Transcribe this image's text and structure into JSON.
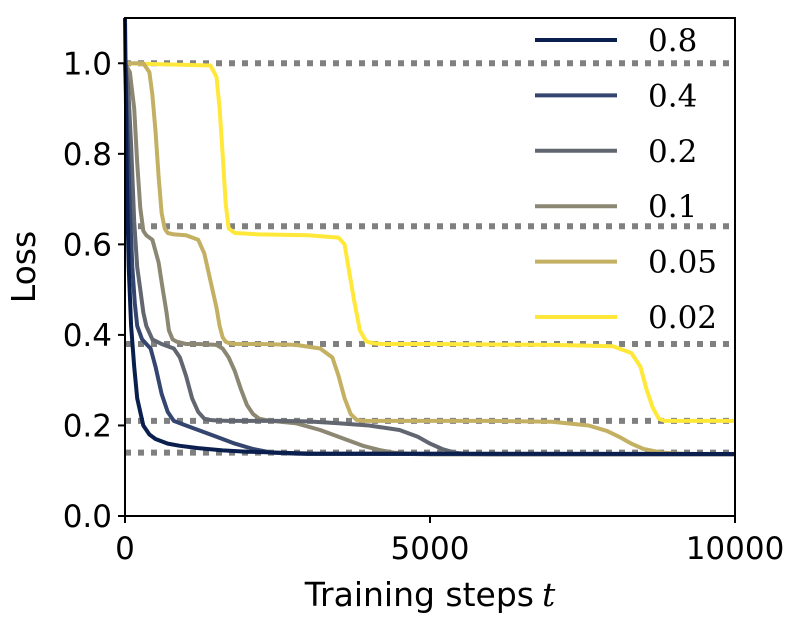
{
  "chart_data": {
    "type": "line",
    "xlabel": "Training steps",
    "xlabel_math": "t",
    "ylabel": "Loss",
    "xlim": [
      0,
      10000
    ],
    "ylim": [
      0.0,
      1.1
    ],
    "x_ticks": [
      0,
      5000,
      10000
    ],
    "x_tick_labels": [
      "0",
      "5000",
      "10000"
    ],
    "y_ticks": [
      0.0,
      0.2,
      0.4,
      0.6,
      0.8,
      1.0
    ],
    "y_tick_labels": [
      "0.0",
      "0.2",
      "0.4",
      "0.6",
      "0.8",
      "1.0"
    ],
    "reference_lines": [
      1.0,
      0.64,
      0.38,
      0.21,
      0.14
    ],
    "reference_line_color": "#808080",
    "legend_position": "upper-right",
    "series": [
      {
        "name": "0.8",
        "color": "#0a1f4d",
        "x": [
          0,
          30,
          60,
          100,
          150,
          200,
          300,
          400,
          500,
          700,
          900,
          1200,
          1600,
          2000,
          2500,
          3000,
          10000
        ],
        "y": [
          1.1,
          0.75,
          0.55,
          0.42,
          0.33,
          0.26,
          0.2,
          0.18,
          0.17,
          0.16,
          0.155,
          0.15,
          0.145,
          0.142,
          0.14,
          0.138,
          0.137
        ]
      },
      {
        "name": "0.4",
        "color": "#34466f",
        "x": [
          0,
          40,
          80,
          120,
          160,
          200,
          280,
          350,
          420,
          500,
          600,
          700,
          800,
          1000,
          1200,
          1500,
          1800,
          2100,
          2400,
          2700,
          3000,
          10000
        ],
        "y": [
          1.0,
          0.85,
          0.68,
          0.55,
          0.47,
          0.42,
          0.39,
          0.38,
          0.37,
          0.33,
          0.27,
          0.23,
          0.21,
          0.2,
          0.19,
          0.175,
          0.16,
          0.148,
          0.14,
          0.138,
          0.137,
          0.137
        ]
      },
      {
        "name": "0.2",
        "color": "#616670",
        "x": [
          0,
          50,
          100,
          150,
          200,
          250,
          300,
          350,
          450,
          600,
          700,
          800,
          900,
          1000,
          1100,
          1200,
          1300,
          1400,
          1500,
          1700,
          2000,
          2500,
          3000,
          3500,
          4000,
          4500,
          4800,
          5000,
          5200,
          5400,
          5600,
          6000,
          10000
        ],
        "y": [
          1.0,
          0.95,
          0.82,
          0.65,
          0.55,
          0.5,
          0.45,
          0.42,
          0.39,
          0.38,
          0.375,
          0.37,
          0.35,
          0.31,
          0.26,
          0.23,
          0.215,
          0.212,
          0.211,
          0.21,
          0.21,
          0.21,
          0.209,
          0.205,
          0.2,
          0.19,
          0.175,
          0.16,
          0.148,
          0.14,
          0.137,
          0.136,
          0.136
        ]
      },
      {
        "name": "0.1",
        "color": "#8c8773",
        "x": [
          0,
          80,
          150,
          200,
          250,
          300,
          350,
          450,
          550,
          620,
          680,
          720,
          780,
          850,
          1000,
          1200,
          1500,
          1600,
          1700,
          1800,
          1900,
          2000,
          2100,
          2200,
          2300,
          2400,
          2800,
          3200,
          3600,
          3900,
          4200,
          4400,
          4700,
          5000,
          5500,
          10000
        ],
        "y": [
          1.0,
          0.98,
          0.9,
          0.78,
          0.68,
          0.63,
          0.62,
          0.61,
          0.56,
          0.5,
          0.45,
          0.41,
          0.39,
          0.385,
          0.38,
          0.38,
          0.378,
          0.37,
          0.35,
          0.32,
          0.28,
          0.245,
          0.225,
          0.215,
          0.212,
          0.21,
          0.205,
          0.19,
          0.17,
          0.155,
          0.145,
          0.14,
          0.137,
          0.136,
          0.136,
          0.136
        ]
      },
      {
        "name": "0.05",
        "color": "#c4b063",
        "x": [
          0,
          300,
          400,
          450,
          500,
          550,
          600,
          650,
          700,
          800,
          1000,
          1200,
          1300,
          1400,
          1500,
          1550,
          1600,
          1650,
          1700,
          1800,
          2200,
          2800,
          3200,
          3400,
          3500,
          3600,
          3700,
          3800,
          3900,
          4500,
          6000,
          7000,
          7600,
          7900,
          8100,
          8300,
          8500,
          8800,
          9200,
          10000
        ],
        "y": [
          1.0,
          1.0,
          0.98,
          0.93,
          0.85,
          0.75,
          0.67,
          0.635,
          0.625,
          0.622,
          0.62,
          0.61,
          0.58,
          0.52,
          0.46,
          0.42,
          0.395,
          0.385,
          0.382,
          0.38,
          0.38,
          0.378,
          0.37,
          0.35,
          0.31,
          0.26,
          0.225,
          0.212,
          0.21,
          0.21,
          0.21,
          0.208,
          0.2,
          0.188,
          0.175,
          0.16,
          0.148,
          0.14,
          0.137,
          0.137
        ]
      },
      {
        "name": "0.02",
        "color": "#ffe839",
        "x": [
          0,
          1400,
          1500,
          1550,
          1600,
          1650,
          1700,
          1800,
          2200,
          3000,
          3500,
          3600,
          3650,
          3750,
          3850,
          3950,
          4050,
          4200,
          5000,
          7000,
          8000,
          8300,
          8450,
          8550,
          8650,
          8750,
          8850,
          9000,
          10000
        ],
        "y": [
          1.0,
          0.995,
          0.97,
          0.9,
          0.8,
          0.69,
          0.635,
          0.625,
          0.622,
          0.62,
          0.615,
          0.6,
          0.56,
          0.48,
          0.41,
          0.386,
          0.382,
          0.38,
          0.38,
          0.378,
          0.375,
          0.36,
          0.33,
          0.28,
          0.24,
          0.215,
          0.21,
          0.21,
          0.21
        ]
      }
    ]
  }
}
